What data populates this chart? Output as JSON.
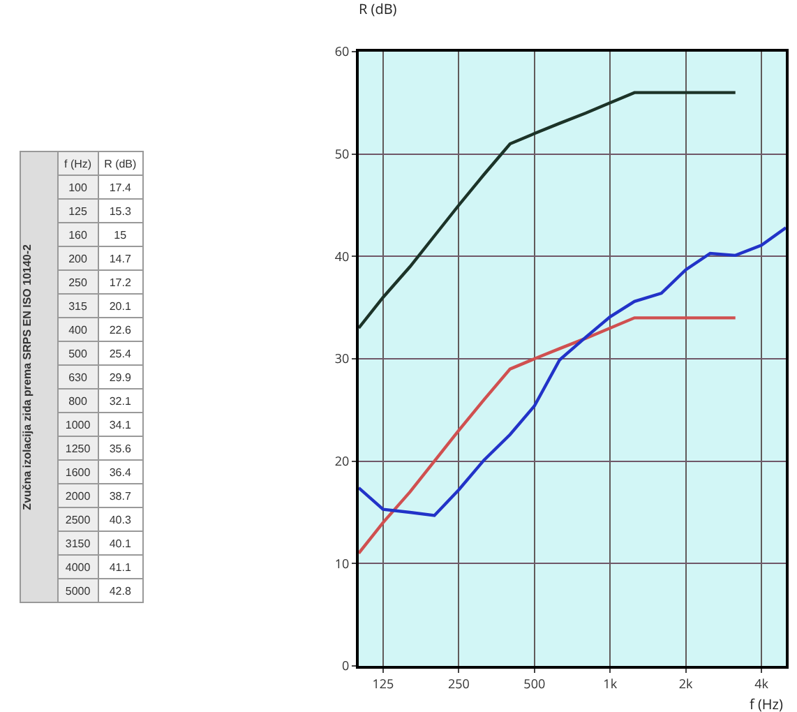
{
  "chart_data": [
    {
      "type": "other",
      "data_labels": true,
      "annotations": [
        "Zvučna izolacija zida prema SRPS EN ISO 10140-2"
      ],
      "xlabel": "f (Hz)",
      "ylabel": "R (dB)",
      "categories": [
        "100",
        "125",
        "160",
        "200",
        "250",
        "315",
        "400",
        "500",
        "630",
        "800",
        "1000",
        "1250",
        "1600",
        "2000",
        "2500",
        "3150",
        "4000",
        "5000"
      ],
      "values": [
        17.4,
        15.3,
        15,
        14.7,
        17.2,
        20.1,
        22.6,
        25.4,
        29.9,
        32.1,
        34.1,
        35.6,
        36.4,
        38.7,
        40.3,
        40.1,
        41.1,
        42.8
      ]
    },
    {
      "type": "line",
      "xlabel": "f (Hz)",
      "ylabel": "R (dB)",
      "log": "x",
      "xlim": [
        100,
        5000
      ],
      "xticks": [
        125,
        250,
        500,
        {
          "value": 1000,
          "label": "1k"
        },
        {
          "value": 2000,
          "label": "2k"
        },
        {
          "value": 4000,
          "label": "4k"
        }
      ],
      "ylim": [
        0,
        60
      ],
      "yticks": [
        0,
        10,
        20,
        30,
        40,
        50,
        60
      ],
      "grid": true,
      "marker": "none",
      "line_style": "solid",
      "series": [
        {
          "color": "#1c3328",
          "x": [
            100,
            125,
            160,
            200,
            250,
            315,
            400,
            500,
            630,
            800,
            1000,
            1250,
            1600,
            2000,
            2500,
            3150
          ],
          "values": [
            33,
            36,
            39,
            42,
            45,
            48,
            51,
            52,
            53,
            54,
            55,
            56,
            56,
            56,
            56,
            56
          ]
        },
        {
          "color": "#d05050",
          "x": [
            100,
            125,
            160,
            200,
            250,
            315,
            400,
            500,
            630,
            800,
            1000,
            1250,
            1600,
            2000,
            2500,
            3150
          ],
          "values": [
            11,
            14,
            17,
            20,
            23,
            26,
            29,
            30,
            31,
            32,
            33,
            34,
            34,
            34,
            34,
            34
          ]
        },
        {
          "color": "#2233c8",
          "x": [
            100,
            125,
            160,
            200,
            250,
            315,
            400,
            500,
            630,
            800,
            1000,
            1250,
            1600,
            2000,
            2500,
            3150,
            4000,
            5000
          ],
          "values": [
            17.4,
            15.3,
            15,
            14.7,
            17.2,
            20.1,
            22.6,
            25.4,
            29.9,
            32.1,
            34.1,
            35.6,
            36.4,
            38.7,
            40.3,
            40.1,
            41.1,
            42.8
          ]
        }
      ]
    }
  ]
}
